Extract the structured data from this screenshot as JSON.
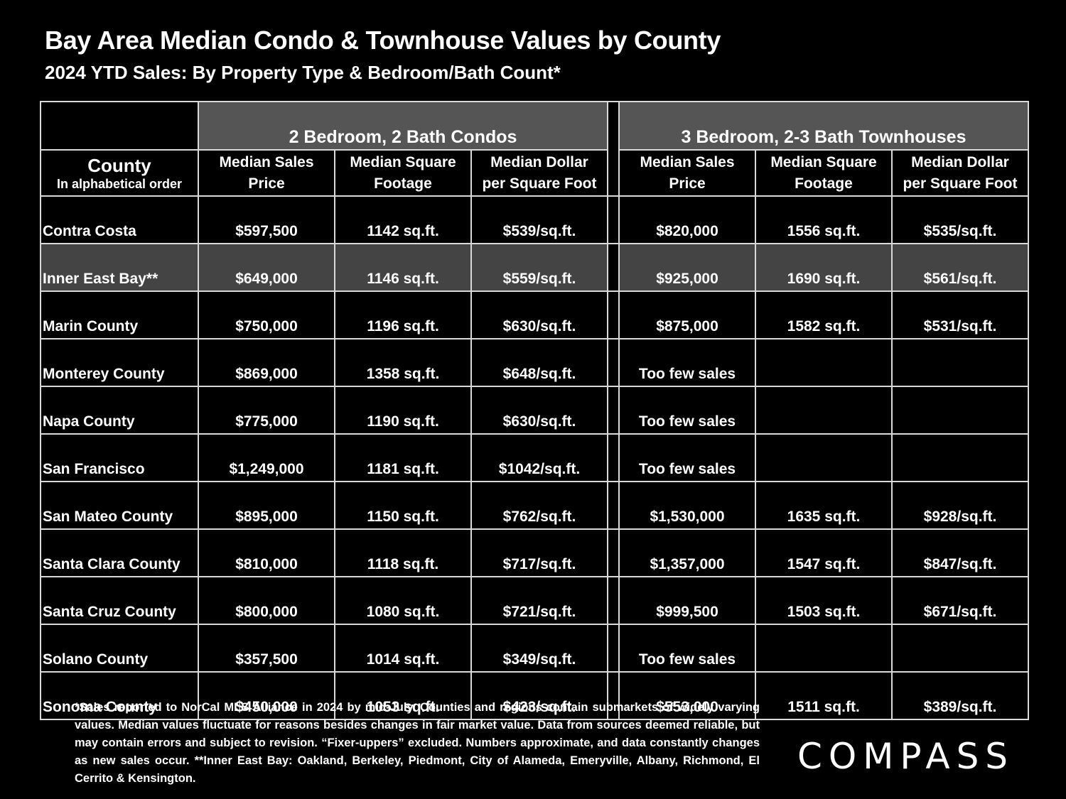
{
  "title": "Bay Area Median Condo & Townhouse Values by County",
  "subtitle": "2024 YTD Sales:  By Property Type & Bedroom/Bath Count*",
  "groups": {
    "condos": "2 Bedroom, 2 Bath Condos",
    "townhouses": "3 Bedroom, 2-3 Bath Townhouses"
  },
  "headers": {
    "county_main": "County",
    "county_sub": "In alphabetical order",
    "price_l1": "Median Sales",
    "price_l2": "Price",
    "sqft_l1": "Median Square",
    "sqft_l2": "Footage",
    "ppsf_l1": "Median Dollar",
    "ppsf_l2": "per Square Foot"
  },
  "rows": [
    {
      "county": "Contra Costa",
      "c_price": "$597,500",
      "c_sqft": "1142 sq.ft.",
      "c_ppsf": "$539/sq.ft.",
      "t_price": "$820,000",
      "t_sqft": "1556 sq.ft.",
      "t_ppsf": "$535/sq.ft."
    },
    {
      "county": "Inner East Bay**",
      "c_price": "$649,000",
      "c_sqft": "1146 sq.ft.",
      "c_ppsf": "$559/sq.ft.",
      "t_price": "$925,000",
      "t_sqft": "1690 sq.ft.",
      "t_ppsf": "$561/sq.ft."
    },
    {
      "county": "Marin County",
      "c_price": "$750,000",
      "c_sqft": "1196 sq.ft.",
      "c_ppsf": "$630/sq.ft.",
      "t_price": "$875,000",
      "t_sqft": "1582 sq.ft.",
      "t_ppsf": "$531/sq.ft."
    },
    {
      "county": "Monterey County",
      "c_price": "$869,000",
      "c_sqft": "1358 sq.ft.",
      "c_ppsf": "$648/sq.ft.",
      "t_price": "Too few sales",
      "t_sqft": "",
      "t_ppsf": ""
    },
    {
      "county": "Napa County",
      "c_price": "$775,000",
      "c_sqft": "1190 sq.ft.",
      "c_ppsf": "$630/sq.ft.",
      "t_price": "Too few sales",
      "t_sqft": "",
      "t_ppsf": ""
    },
    {
      "county": "San Francisco",
      "c_price": "$1,249,000",
      "c_sqft": "1181 sq.ft.",
      "c_ppsf": "$1042/sq.ft.",
      "t_price": "Too few sales",
      "t_sqft": "",
      "t_ppsf": ""
    },
    {
      "county": "San Mateo County",
      "c_price": "$895,000",
      "c_sqft": "1150 sq.ft.",
      "c_ppsf": "$762/sq.ft.",
      "t_price": "$1,530,000",
      "t_sqft": "1635 sq.ft.",
      "t_ppsf": "$928/sq.ft."
    },
    {
      "county": "Santa Clara County",
      "c_price": "$810,000",
      "c_sqft": "1118 sq.ft.",
      "c_ppsf": "$717/sq.ft.",
      "t_price": "$1,357,000",
      "t_sqft": "1547 sq.ft.",
      "t_ppsf": "$847/sq.ft."
    },
    {
      "county": "Santa Cruz County",
      "c_price": "$800,000",
      "c_sqft": "1080 sq.ft.",
      "c_ppsf": "$721/sq.ft.",
      "t_price": "$999,500",
      "t_sqft": "1503 sq.ft.",
      "t_ppsf": "$671/sq.ft."
    },
    {
      "county": "Solano County",
      "c_price": "$357,500",
      "c_sqft": "1014 sq.ft.",
      "c_ppsf": "$349/sq.ft.",
      "t_price": "Too few sales",
      "t_sqft": "",
      "t_ppsf": ""
    },
    {
      "county": "Sonoma County",
      "c_price": "$450,000",
      "c_sqft": "1053 sq.ft.",
      "c_ppsf": "$423/sq.ft.",
      "t_price": "$553,000",
      "t_sqft": "1511 sq.ft.",
      "t_ppsf": "$389/sq.ft."
    }
  ],
  "shaded_row_index": 1,
  "footnote": "*Sales reported to NorCal MLS Alliance in 2024 by mid-July. Counties and regions contain submarkets of widely varying values. Median values fluctuate for reasons besides changes in fair market value. Data from sources deemed reliable, but may contain errors and subject to revision.  “Fixer-uppers” excluded. Numbers approximate, and data constantly changes as new sales occur. **Inner East Bay: Oakland, Berkeley, Piedmont, City of Alameda, Emeryville, Albany, Richmond, El Cerrito & Kensington.",
  "logo": "COMPASS",
  "colors": {
    "background": "#000000",
    "header_fill": "#555555",
    "shaded_row": "#444444",
    "text": "#ffffff",
    "border": "#d9d9d9"
  }
}
